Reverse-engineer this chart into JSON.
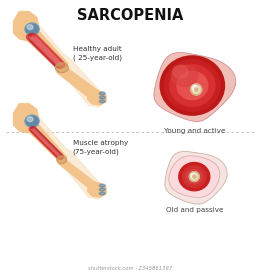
{
  "title": "SARCOPENIA",
  "title_fontsize": 10.5,
  "background_color": "#ffffff",
  "top_label": "Healthy adult\n( 25-year-old)",
  "bottom_label": "Muscle atrophy\n(75-year-old)",
  "top_cross_label": "Young and active",
  "bottom_cross_label": "Old and passive",
  "skin_color": "#F2C38A",
  "skin_light": "#F7D9B0",
  "skin_dark": "#D4A060",
  "skin_outline": "#C89060",
  "muscle_red_dark": "#C0272D",
  "muscle_red_mid": "#D94040",
  "muscle_red_light": "#E87070",
  "muscle_pink": "#F0A0A0",
  "bone_color": "#EDD5B0",
  "bone_outline": "#C8A878",
  "joint_blue": "#4A7FAA",
  "joint_blue_light": "#7AAACE",
  "divider_color": "#BBBBBB",
  "label_fontsize": 5.2,
  "cross_label_fontsize": 5.2,
  "watermark_text": "shutterstock.com · 2345861397"
}
